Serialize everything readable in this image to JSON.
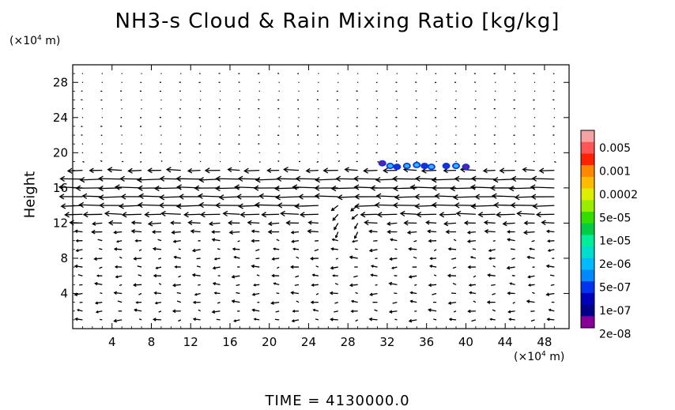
{
  "chart_data": {
    "type": "vector-field-contour",
    "title": "NH3-s Cloud & Rain Mixing Ratio [kg/kg]",
    "ylabel": "Height",
    "x_unit": "(×10⁴ m)",
    "y_unit": "(×10⁴ m)",
    "x_ticks": [
      4,
      8,
      12,
      16,
      20,
      24,
      28,
      32,
      36,
      40,
      44,
      48
    ],
    "y_ticks": [
      4,
      8,
      12,
      16,
      20,
      24,
      28
    ],
    "xlim": [
      0,
      50.5
    ],
    "ylim": [
      0,
      30
    ],
    "colorbar": {
      "labels": [
        "0.005",
        "0.001",
        "0.0002",
        "5e-05",
        "1e-05",
        "2e-06",
        "5e-07",
        "1e-07",
        "2e-08"
      ],
      "colors": [
        "#f7a2a2",
        "#ff5555",
        "#ff2200",
        "#ff8800",
        "#ffbb00",
        "#ddee00",
        "#99ee00",
        "#33dd00",
        "#00cc44",
        "#00ee99",
        "#00ddcc",
        "#00bbff",
        "#0088ff",
        "#0033ee",
        "#0000bb",
        "#000088",
        "#880099"
      ]
    },
    "cloud_blobs": [
      {
        "x": 31.5,
        "y": 18.8,
        "level": "2e-08"
      },
      {
        "x": 32.3,
        "y": 18.5,
        "level": "5e-07"
      },
      {
        "x": 33.0,
        "y": 18.4,
        "level": "1e-07"
      },
      {
        "x": 34.0,
        "y": 18.5,
        "level": "5e-07"
      },
      {
        "x": 35.0,
        "y": 18.6,
        "level": "5e-07"
      },
      {
        "x": 35.8,
        "y": 18.5,
        "level": "1e-07"
      },
      {
        "x": 36.5,
        "y": 18.4,
        "level": "5e-07"
      },
      {
        "x": 38.0,
        "y": 18.5,
        "level": "1e-07"
      },
      {
        "x": 39.0,
        "y": 18.5,
        "level": "5e-07"
      },
      {
        "x": 40.0,
        "y": 18.4,
        "level": "2e-08"
      }
    ],
    "strong_wind_layers": [
      {
        "y": 18.2,
        "u": -1.8
      },
      {
        "y": 17.0,
        "u": -2.0
      },
      {
        "y": 16.0,
        "u": -2.2
      },
      {
        "y": 15.0,
        "u": -1.9
      },
      {
        "y": 14.0,
        "u": -2.0
      },
      {
        "y": 13.0,
        "u": -1.6
      },
      {
        "y": 12.0,
        "u": -1.0
      },
      {
        "y": 11.0,
        "u": -0.8
      }
    ],
    "grid": "off"
  },
  "time_label": "TIME = 4130000.0"
}
